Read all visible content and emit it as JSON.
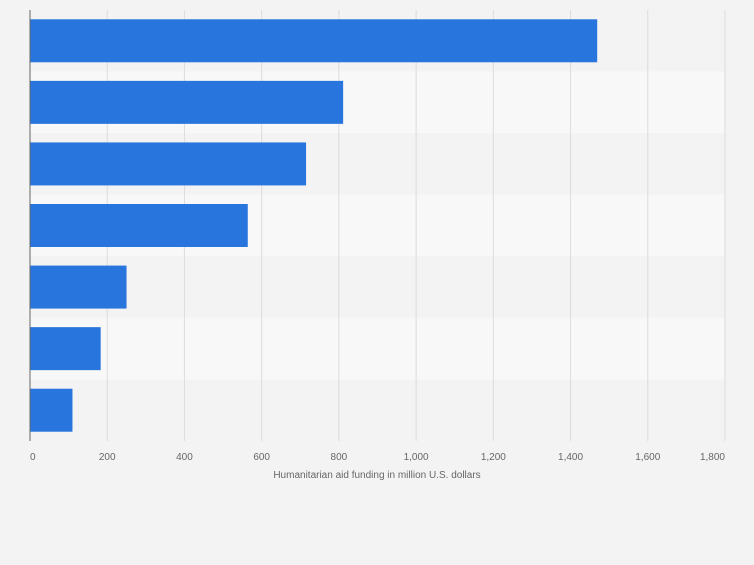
{
  "chart_data": {
    "type": "bar",
    "orientation": "horizontal",
    "categories": [
      "",
      "",
      "",
      "",
      "",
      "",
      ""
    ],
    "values": [
      1469,
      811,
      715,
      564,
      250,
      183,
      110
    ],
    "xlabel": "Humanitarian aid funding in million U.S. dollars",
    "xlim": [
      0,
      1800
    ],
    "ticks": [
      0,
      200,
      400,
      600,
      800,
      1000,
      1200,
      1400,
      1600,
      1800
    ],
    "tick_labels": [
      "0",
      "200",
      "400",
      "600",
      "800",
      "1,000",
      "1,200",
      "1,400",
      "1,600",
      "1,800"
    ],
    "grid": true,
    "colors": {
      "bar": "#2876dd",
      "band_light": "#f8f8f8",
      "band_dark": "#f3f3f3",
      "grid": "#dcdcdc",
      "axis": "#666666",
      "tick_text": "#666666",
      "label_text": "#666666",
      "background": "#f3f3f3"
    }
  }
}
